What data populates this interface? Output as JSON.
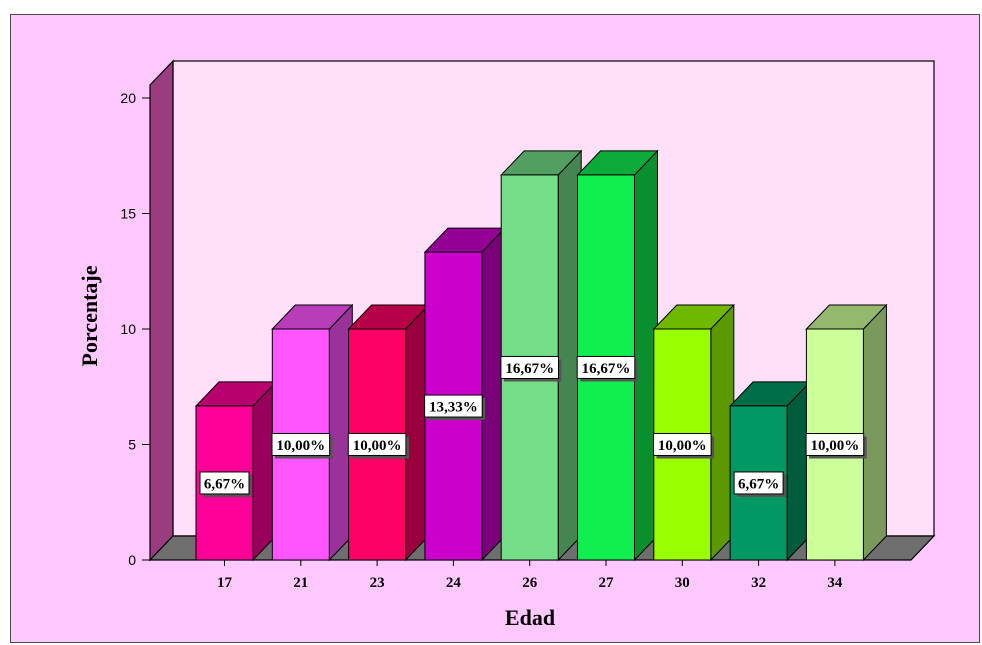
{
  "chart_data": {
    "type": "bar",
    "style": "3d",
    "xlabel": "Edad",
    "ylabel": "Porcentaje",
    "categories": [
      "17",
      "21",
      "23",
      "24",
      "26",
      "27",
      "30",
      "32",
      "34"
    ],
    "values": [
      6.67,
      10.0,
      10.0,
      13.33,
      16.67,
      16.67,
      10.0,
      6.67,
      10.0
    ],
    "data_labels": [
      "6,67%",
      "10,00%",
      "10,00%",
      "13,33%",
      "16,67%",
      "16,67%",
      "10,00%",
      "6,67%",
      "10,00%"
    ],
    "y_ticks": [
      "0",
      "5",
      "10",
      "15",
      "20"
    ],
    "ylim": [
      0,
      20
    ],
    "grid": false,
    "legend": "none",
    "colors": {
      "background": "#ffc8ff",
      "plot_wall": "#ffe0f8",
      "side_wall": "#993d80",
      "floor": "#6e6e6e",
      "bars": [
        "#ff0099",
        "#ff55ff",
        "#ff0066",
        "#cc00cc",
        "#73dd88",
        "#11ee4f",
        "#99ff00",
        "#009966",
        "#ccff99"
      ]
    }
  }
}
